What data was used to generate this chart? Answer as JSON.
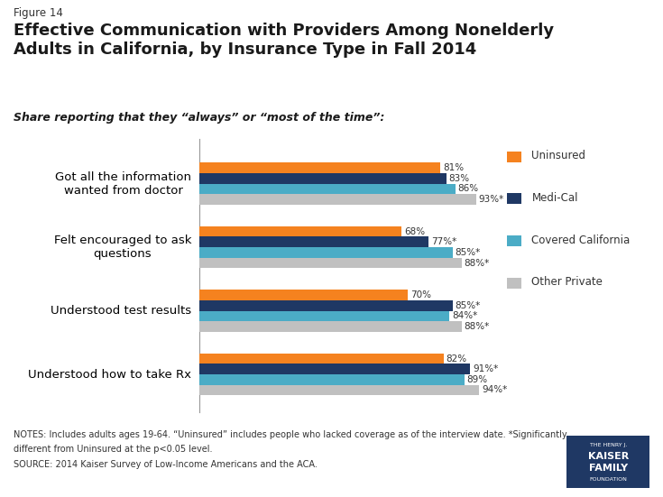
{
  "title_small": "Figure 14",
  "title": "Effective Communication with Providers Among Nonelderly\nAdults in California, by Insurance Type in Fall 2014",
  "subtitle": "Share reporting that they “always” or “most of the time”:",
  "categories": [
    "Got all the information\nwanted from doctor",
    "Felt encouraged to ask\nquestions",
    "Understood test results",
    "Understood how to take Rx"
  ],
  "series": [
    {
      "name": "Uninsured",
      "color": "#F5821F",
      "values": [
        81,
        68,
        70,
        82
      ],
      "labels": [
        "81%",
        "68%",
        "70%",
        "82%"
      ]
    },
    {
      "name": "Medi-Cal",
      "color": "#1F3864",
      "values": [
        83,
        77,
        85,
        91
      ],
      "labels": [
        "83%",
        "77%*",
        "85%*",
        "91%*"
      ]
    },
    {
      "name": "Covered California",
      "color": "#4BACC6",
      "values": [
        86,
        85,
        84,
        89
      ],
      "labels": [
        "86%",
        "85%*",
        "84%*",
        "89%"
      ]
    },
    {
      "name": "Other Private",
      "color": "#C0C0C0",
      "values": [
        93,
        88,
        88,
        94
      ],
      "labels": [
        "93%*",
        "88%*",
        "88%*",
        "94%*"
      ]
    }
  ],
  "notes_line1": "NOTES: Includes adults ages 19-64. “Uninsured” includes people who lacked coverage as of the interview date. *Significantly",
  "notes_line2": "different from Uninsured at the p<0.05 level.",
  "notes_line3": "SOURCE: 2014 Kaiser Survey of Low-Income Americans and the ACA.",
  "background_color": "#FFFFFF"
}
